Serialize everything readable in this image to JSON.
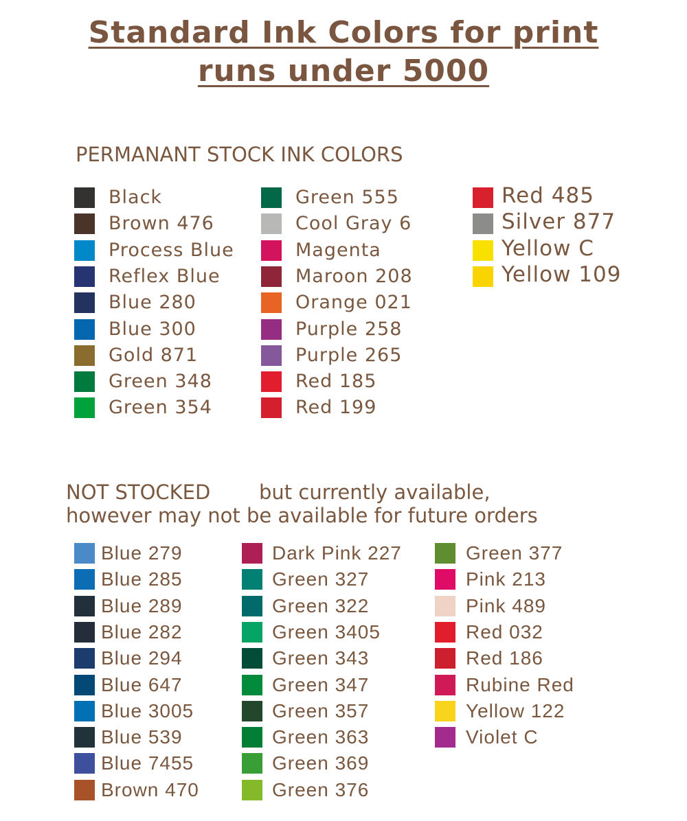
{
  "title": {
    "line1": "Standard Ink Colors for print ",
    "line2": "runs under 5000"
  },
  "stock": {
    "heading": "PERMANANT STOCK INK COLORS",
    "columns": [
      [
        {
          "name": "Black",
          "color": "#333231"
        },
        {
          "name": "Brown 476",
          "color": "#4a3328"
        },
        {
          "name": "Process Blue",
          "color": "#0088c9"
        },
        {
          "name": "Reflex Blue",
          "color": "#263472"
        },
        {
          "name": "Blue 280",
          "color": "#24325f"
        },
        {
          "name": "Blue 300",
          "color": "#0567b0"
        },
        {
          "name": "Gold 871",
          "color": "#8a6c2e"
        },
        {
          "name": "Green 348",
          "color": "#017a3e"
        },
        {
          "name": "Green 354",
          "color": "#01a23c"
        }
      ],
      [
        {
          "name": "Green 555",
          "color": "#036848"
        },
        {
          "name": "Cool Gray 6",
          "color": "#b8b8b6"
        },
        {
          "name": "Magenta",
          "color": "#d4135f"
        },
        {
          "name": "Maroon 208",
          "color": "#8e2538"
        },
        {
          "name": "Orange 021",
          "color": "#e76425"
        },
        {
          "name": "Purple 258",
          "color": "#952e83"
        },
        {
          "name": "Purple 265",
          "color": "#85579b"
        },
        {
          "name": "Red 185",
          "color": "#e21d2d"
        },
        {
          "name": "Red 199",
          "color": "#d41f2f"
        }
      ],
      [
        {
          "name": "Red 485",
          "color": "#d9212e"
        },
        {
          "name": "Silver 877",
          "color": "#8c8d8b"
        },
        {
          "name": "Yellow C",
          "color": "#f8e100"
        },
        {
          "name": "Yellow 109",
          "color": "#fad400"
        }
      ]
    ]
  },
  "not_stocked": {
    "heading_part1": "NOT STOCKED",
    "heading_part2": "but currently available,",
    "heading_line2": "however may not be available for future orders",
    "columns": [
      [
        {
          "name": "Blue 279",
          "color": "#4a8ac8"
        },
        {
          "name": "Blue 285",
          "color": "#0c6db5"
        },
        {
          "name": "Blue 289",
          "color": "#22303b"
        },
        {
          "name": "Blue 282",
          "color": "#252c3a"
        },
        {
          "name": "Blue 294",
          "color": "#1d3c6e"
        },
        {
          "name": "Blue 647",
          "color": "#044876"
        },
        {
          "name": "Blue 3005",
          "color": "#0270b5"
        },
        {
          "name": "Blue 539",
          "color": "#22323b"
        },
        {
          "name": "Blue 7455",
          "color": "#3d4f9d"
        },
        {
          "name": "Brown 470",
          "color": "#a8522a"
        }
      ],
      [
        {
          "name": "Dark Pink 227",
          "color": "#ad1f55"
        },
        {
          "name": "Green 327",
          "color": "#028073"
        },
        {
          "name": "Green 322",
          "color": "#036a6c"
        },
        {
          "name": "Green 3405",
          "color": "#03a466"
        },
        {
          "name": "Green 343",
          "color": "#034d38"
        },
        {
          "name": "Green 347",
          "color": "#028b3b"
        },
        {
          "name": "Green 357",
          "color": "#22472a"
        },
        {
          "name": "Green 363",
          "color": "#037e35"
        },
        {
          "name": "Green 369",
          "color": "#389e35"
        },
        {
          "name": "Green 376",
          "color": "#84b929"
        }
      ],
      [
        {
          "name": "Green 377",
          "color": "#5e8e2f"
        },
        {
          "name": "Pink 213",
          "color": "#e00b67"
        },
        {
          "name": "Pink 489",
          "color": "#efd3c4"
        },
        {
          "name": "Red 032",
          "color": "#e31e2c"
        },
        {
          "name": "Red 186",
          "color": "#cd202f"
        },
        {
          "name": "Rubine Red",
          "color": "#d01a58"
        },
        {
          "name": "Yellow 122",
          "color": "#f8d51c"
        },
        {
          "name": "Violet C",
          "color": "#a32b8d"
        }
      ]
    ]
  }
}
